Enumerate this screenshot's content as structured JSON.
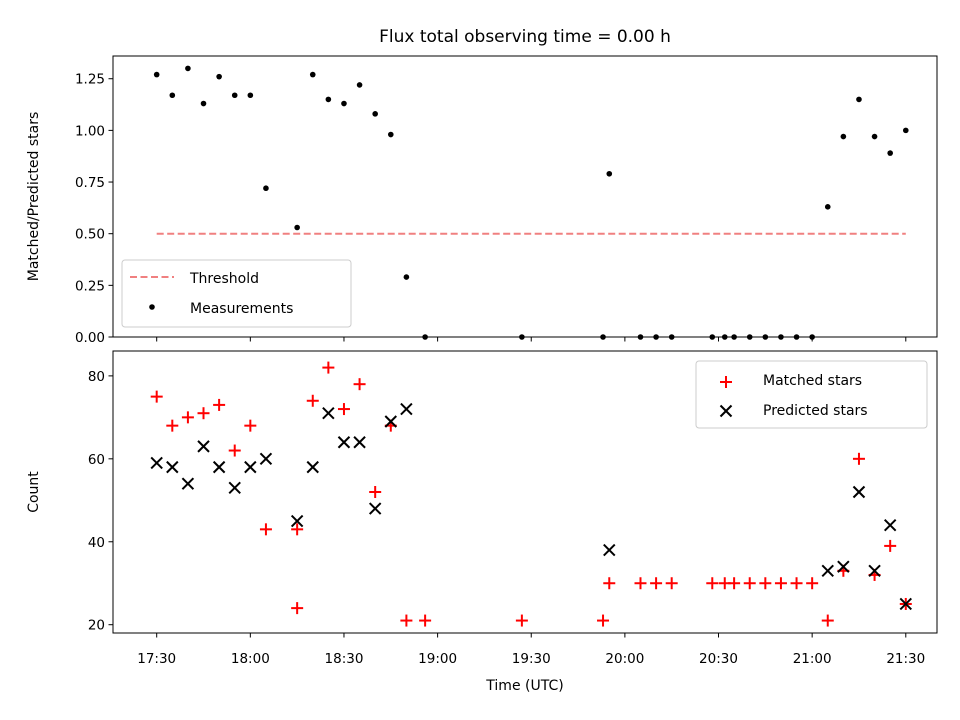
{
  "chart_data": [
    {
      "type": "scatter",
      "title": "Flux total observing time = 0.00 h",
      "xlabel": "",
      "ylabel": "Matched/Predicted stars",
      "ylim": [
        0,
        1.36
      ],
      "yticks": [
        "0.00",
        "0.25",
        "0.50",
        "0.75",
        "1.00",
        "1.25"
      ],
      "x_range": [
        "17:16",
        "21:40"
      ],
      "legend_position": "lower-left",
      "series": [
        {
          "name": "Threshold",
          "style": "dashed-line",
          "color": "#f08080",
          "x": [
            "17:30",
            "21:30"
          ],
          "y": [
            0.5,
            0.5
          ]
        },
        {
          "name": "Measurements",
          "style": "dot",
          "color": "#000000",
          "x": [
            "17:30",
            "17:35",
            "17:40",
            "17:45",
            "17:50",
            "17:55",
            "18:00",
            "18:05",
            "18:15",
            "18:20",
            "18:25",
            "18:30",
            "18:35",
            "18:40",
            "18:45",
            "18:50",
            "18:56",
            "19:27",
            "19:53",
            "19:55",
            "20:05",
            "20:10",
            "20:15",
            "20:28",
            "20:32",
            "20:35",
            "20:40",
            "20:45",
            "20:50",
            "20:55",
            "21:00",
            "21:05",
            "21:10",
            "21:15",
            "21:20",
            "21:25",
            "21:30"
          ],
          "y": [
            1.27,
            1.17,
            1.3,
            1.13,
            1.26,
            1.17,
            1.17,
            0.72,
            0.53,
            1.27,
            1.15,
            1.13,
            1.22,
            1.08,
            0.98,
            0.29,
            0.0,
            0.0,
            0.0,
            0.79,
            0.0,
            0.0,
            0.0,
            0.0,
            0.0,
            0.0,
            0.0,
            0.0,
            0.0,
            0.0,
            0.0,
            0.63,
            0.97,
            1.15,
            0.97,
            0.89,
            1.0
          ]
        }
      ]
    },
    {
      "type": "scatter",
      "title": "",
      "xlabel": "Time (UTC)",
      "ylabel": "Count",
      "ylim": [
        18,
        86
      ],
      "yticks": [
        "20",
        "40",
        "60",
        "80"
      ],
      "xticks": [
        "17:30",
        "18:00",
        "18:30",
        "19:00",
        "19:30",
        "20:00",
        "20:30",
        "21:00",
        "21:30"
      ],
      "x_range": [
        "17:16",
        "21:40"
      ],
      "legend_position": "upper-right",
      "series": [
        {
          "name": "Matched stars",
          "marker": "+",
          "color": "#ff0000",
          "x": [
            "17:30",
            "17:35",
            "17:40",
            "17:45",
            "17:50",
            "17:55",
            "18:00",
            "18:05",
            "18:15",
            "18:15",
            "18:20",
            "18:25",
            "18:30",
            "18:35",
            "18:40",
            "18:45",
            "18:50",
            "18:56",
            "19:27",
            "19:53",
            "19:55",
            "20:05",
            "20:10",
            "20:15",
            "20:28",
            "20:32",
            "20:35",
            "20:40",
            "20:45",
            "20:50",
            "20:55",
            "21:00",
            "21:05",
            "21:10",
            "21:15",
            "21:20",
            "21:25",
            "21:30"
          ],
          "y": [
            75,
            68,
            70,
            71,
            73,
            62,
            68,
            43,
            43,
            24,
            74,
            82,
            72,
            78,
            52,
            68,
            21,
            21,
            21,
            21,
            30,
            30,
            30,
            30,
            30,
            30,
            30,
            30,
            30,
            30,
            30,
            30,
            21,
            33,
            60,
            32,
            39,
            25
          ]
        },
        {
          "name": "Predicted stars",
          "marker": "x",
          "color": "#000000",
          "x": [
            "17:30",
            "17:35",
            "17:40",
            "17:45",
            "17:50",
            "17:55",
            "18:00",
            "18:05",
            "18:15",
            "18:20",
            "18:25",
            "18:30",
            "18:35",
            "18:40",
            "18:45",
            "18:50",
            "19:55",
            "21:05",
            "21:10",
            "21:15",
            "21:20",
            "21:25",
            "21:30"
          ],
          "y": [
            59,
            58,
            54,
            63,
            58,
            53,
            58,
            60,
            45,
            58,
            71,
            64,
            64,
            48,
            69,
            72,
            38,
            33,
            34,
            52,
            33,
            44,
            25
          ]
        }
      ]
    }
  ]
}
